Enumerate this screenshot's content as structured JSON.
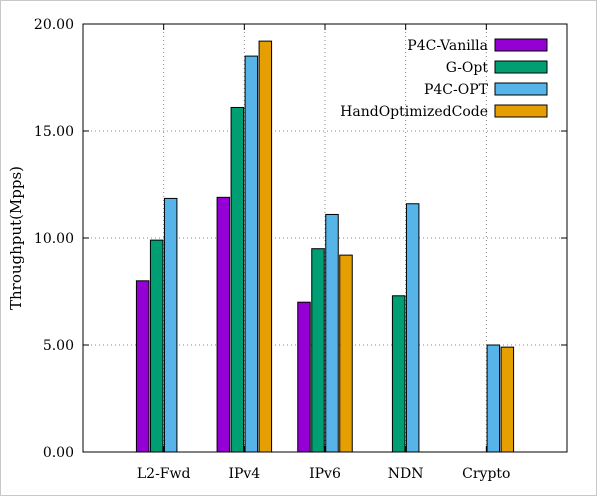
{
  "chart_data": {
    "type": "bar",
    "title": "",
    "xlabel": "",
    "ylabel": "Throughput(Mpps)",
    "ylim": [
      0,
      20
    ],
    "yticks": [
      0,
      5,
      10,
      15,
      20
    ],
    "ytick_labels": [
      "0.00",
      "5.00",
      "10.00",
      "15.00",
      "20.00"
    ],
    "grid": true,
    "legend_position": "top-right",
    "categories": [
      "L2-Fwd",
      "IPv4",
      "IPv6",
      "NDN",
      "Crypto"
    ],
    "series": [
      {
        "name": "P4C-Vanilla",
        "color": "#9400d3",
        "values": [
          8.0,
          11.9,
          7.0,
          null,
          null
        ]
      },
      {
        "name": "G-Opt",
        "color": "#009e73",
        "values": [
          9.9,
          16.1,
          9.5,
          7.3,
          null
        ]
      },
      {
        "name": "P4C-OPT",
        "color": "#56b4e9",
        "values": [
          11.85,
          18.5,
          11.1,
          11.6,
          5.0
        ]
      },
      {
        "name": "HandOptimizedCode",
        "color": "#e69f00",
        "values": [
          null,
          19.2,
          9.2,
          null,
          4.9
        ]
      }
    ]
  }
}
